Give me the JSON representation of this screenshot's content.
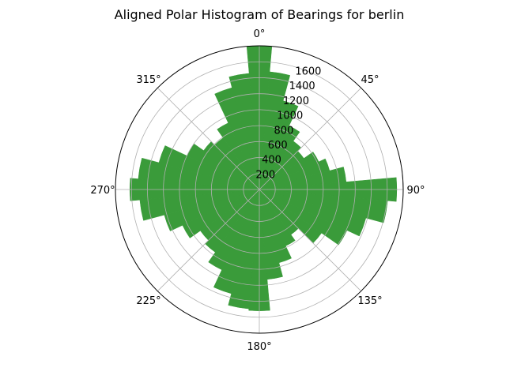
{
  "chart_data": {
    "type": "polar-bar",
    "title": "Aligned Polar Histogram of Bearings for berlin",
    "theta_direction": "clockwise",
    "theta_zero": "north",
    "angular_ticks": [
      "0°",
      "45°",
      "90°",
      "135°",
      "180°",
      "225°",
      "270°",
      "315°"
    ],
    "radial_ticks": [
      200,
      400,
      600,
      800,
      1000,
      1200,
      1400,
      1600
    ],
    "rlim": [
      0,
      1800
    ],
    "bin_width_deg": 10,
    "bin_centers_deg": [
      0,
      10,
      20,
      30,
      40,
      50,
      60,
      70,
      80,
      90,
      100,
      110,
      120,
      130,
      140,
      150,
      160,
      170,
      180,
      190,
      200,
      210,
      220,
      230,
      240,
      250,
      260,
      270,
      280,
      290,
      300,
      310,
      320,
      330,
      340,
      350
    ],
    "values": [
      1800,
      1480,
      1150,
      880,
      740,
      680,
      820,
      910,
      1090,
      1720,
      1610,
      1380,
      1210,
      950,
      690,
      780,
      950,
      1130,
      1520,
      1500,
      1350,
      1110,
      960,
      900,
      1060,
      1230,
      1500,
      1620,
      1520,
      1300,
      1000,
      850,
      790,
      920,
      1320,
      1460
    ],
    "bar_color": "#3a9b3a",
    "bar_alpha": 1.0,
    "grid": true,
    "legend": null
  }
}
